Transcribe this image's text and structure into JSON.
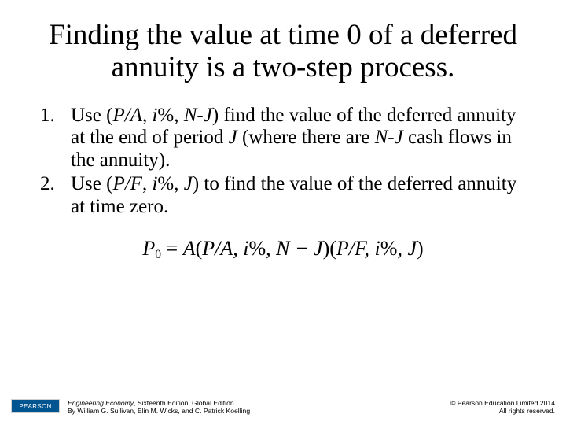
{
  "title": "Finding the value at time 0 of a deferred annuity is a two-step process.",
  "steps": [
    {
      "lead": "Use (",
      "arg1": "P/A",
      "sep1": ", ",
      "arg2": "i",
      "pct": "%, ",
      "arg3": "N-J",
      "mid": ") find the value of the deferred annuity at the end of period ",
      "periodVar": "J",
      "mid2": " (where there are ",
      "countVar": "N-J",
      "tail": " cash flows in the annuity)."
    },
    {
      "lead": "Use (",
      "arg1": "P/F",
      "sep1": ", ",
      "arg2": "i",
      "pct": "%, ",
      "arg3": "J",
      "mid": ") to find the value of the deferred annuity at time zero.",
      "periodVar": "",
      "mid2": "",
      "countVar": "",
      "tail": ""
    }
  ],
  "formula": {
    "P": "P",
    "sub0": "0",
    "eq": " = ",
    "A": "A",
    "lp1": "(",
    "f1": "P/A, i",
    "pct1": "%",
    "c1": ", ",
    "NJ": "N − J",
    "rp1": ")(",
    "f2": "P/F, i",
    "pct2": "%",
    "c2": ", ",
    "J": "J",
    "rp2": ")"
  },
  "footer": {
    "logo": "PEARSON",
    "bookTitle": "Engineering Economy",
    "edition": ", Sixteenth Edition, Global Edition",
    "authors": "By William G. Sullivan, Elin M. Wicks, and C. Patrick Koelling",
    "copyright1": "© Pearson Education Limited 2014",
    "copyright2": "All rights reserved."
  },
  "colors": {
    "background": "#ffffff",
    "text": "#000000",
    "logoBg": "#00548f",
    "logoText": "#ffffff"
  },
  "typography": {
    "titleFontSize": 37,
    "bodyFontSize": 25,
    "formulaFontSize": 26,
    "footerFontSize": 8.6,
    "fontFamily": "Times New Roman"
  }
}
